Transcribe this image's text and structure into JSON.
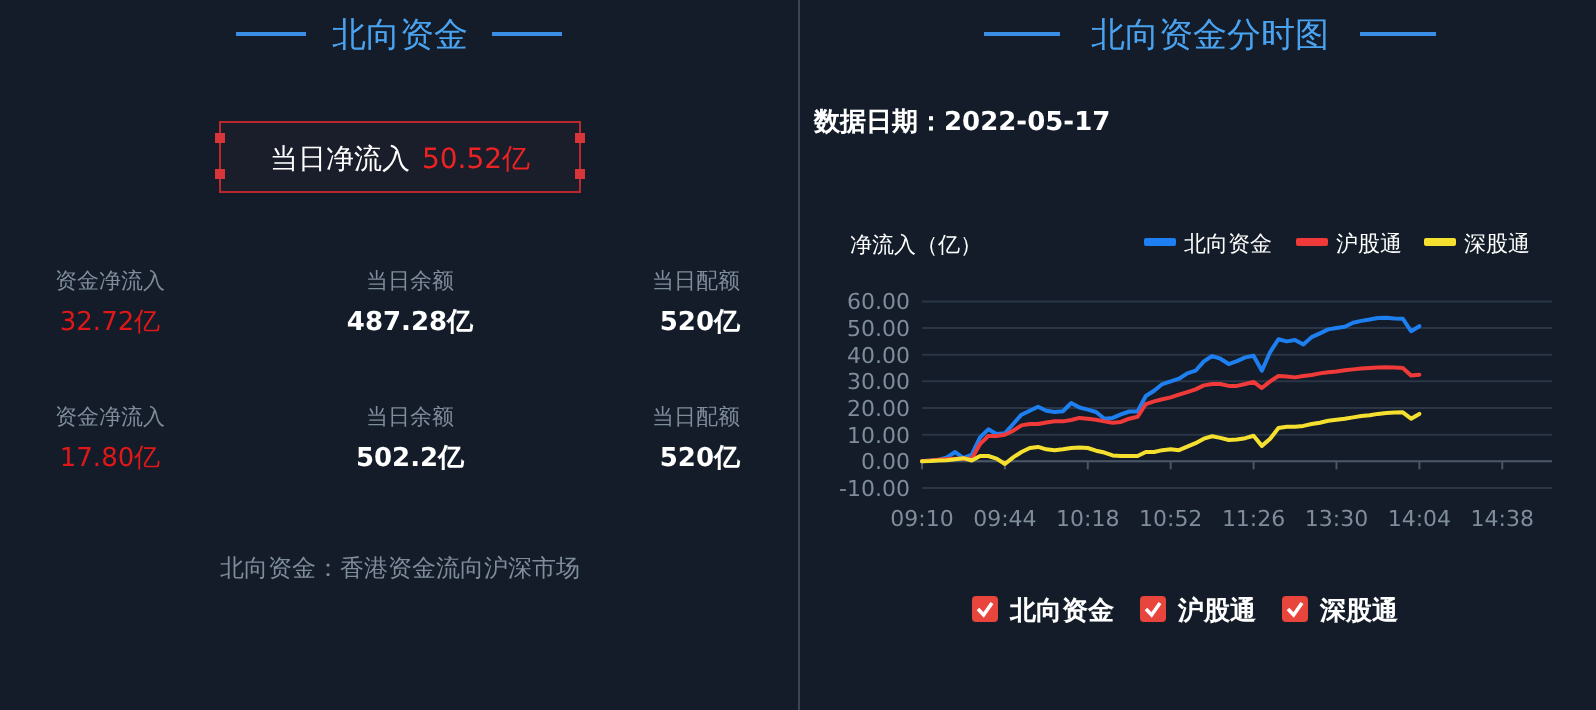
{
  "chart_data": [
    {
      "type": "other",
      "title": "北向资金",
      "annotations": [
        "当日净流入",
        "50.52亿",
        "资金净流入",
        "32.72亿",
        "当日余额",
        "487.28亿",
        "当日配额",
        "520亿",
        "资金净流入",
        "17.80亿",
        "当日余额",
        "502.2亿",
        "当日配额",
        "520亿",
        "北向资金：香港资金流向沪深市场"
      ]
    },
    {
      "type": "line",
      "title": "北向资金分时图",
      "subtitle": "数据日期：2022-05-17",
      "ylabel": "净流入（亿）",
      "legend": "top right",
      "grid": "y",
      "marker": "none",
      "line_style": "solid",
      "categories": [
        "09:10",
        null,
        null,
        null,
        null,
        null,
        null,
        null,
        null,
        null,
        "09:44",
        null,
        null,
        null,
        null,
        null,
        null,
        null,
        null,
        null,
        "10:18",
        null,
        null,
        null,
        null,
        null,
        null,
        null,
        null,
        null,
        "10:52",
        null,
        null,
        null,
        null,
        null,
        null,
        null,
        null,
        null,
        "11:26",
        null,
        null,
        null,
        null,
        null,
        null,
        null,
        null,
        null,
        "13:30",
        null,
        null,
        null,
        null,
        null,
        null,
        null,
        null,
        null,
        "14:04",
        null,
        null,
        null,
        null,
        null,
        null,
        null,
        null,
        null,
        "14:38",
        null,
        null,
        null,
        null,
        null,
        null
      ],
      "ylim": [
        -10,
        60
      ],
      "yticks": [
        {
          "value": -10,
          "label": "-10.00"
        },
        {
          "value": 0,
          "label": "0.00"
        },
        {
          "value": 10,
          "label": "10.00"
        },
        {
          "value": 20,
          "label": "20.00"
        },
        {
          "value": 30,
          "label": "30.00"
        },
        {
          "value": 40,
          "label": "40.00"
        },
        {
          "value": 50,
          "label": "50.00"
        },
        {
          "value": 60,
          "label": "60.00"
        }
      ],
      "series": [
        {
          "name": "北向资金",
          "color": "#1e7ff0",
          "values": [
            0,
            0.3,
            0.5,
            1.5,
            3.5,
            1.2,
            2.5,
            9,
            12,
            10.3,
            10.5,
            14,
            17.5,
            19,
            20.5,
            19,
            18.5,
            18.8,
            21.9,
            20.2,
            19.4,
            18.5,
            16,
            16.3,
            17.6,
            18.7,
            18.7,
            24.5,
            26.5,
            29,
            30,
            31,
            33,
            34,
            37.5,
            39.5,
            38.5,
            36.5,
            37.6,
            39,
            39.6,
            34,
            41,
            45.8,
            45,
            45.5,
            43.8,
            46.6,
            48,
            49.5,
            50,
            50.5,
            52,
            52.7,
            53.2,
            53.8,
            53.9,
            53.6,
            53.5,
            48.8,
            50.7,
            null,
            null,
            null,
            null,
            null,
            null,
            null,
            null,
            null,
            null,
            null,
            null,
            null,
            null,
            null,
            null
          ]
        },
        {
          "name": "沪股通",
          "color": "#f03a3a",
          "values": [
            0,
            0.3,
            0.6,
            0.9,
            1,
            1,
            1,
            6.5,
            9.5,
            9.5,
            10,
            11.5,
            13.5,
            14,
            14,
            14.6,
            15,
            15,
            15.5,
            16.3,
            16,
            15.6,
            15,
            14.5,
            14.8,
            16,
            16.7,
            21.5,
            22.5,
            23.3,
            24,
            25,
            26,
            27,
            28.5,
            29,
            29,
            28.3,
            28.3,
            29,
            29.8,
            27.5,
            30,
            32,
            31.8,
            31.5,
            32,
            32.4,
            33,
            33.4,
            33.7,
            34.2,
            34.5,
            34.8,
            35,
            35.2,
            35.3,
            35.2,
            35,
            32.2,
            32.5,
            null,
            null,
            null,
            null,
            null,
            null,
            null,
            null,
            null,
            null,
            null,
            null,
            null,
            null,
            null,
            null
          ]
        },
        {
          "name": "深股通",
          "color": "#f5e030",
          "values": [
            0,
            0.1,
            0.3,
            0.4,
            0.8,
            1.2,
            0.3,
            2,
            2,
            1,
            -1,
            1.5,
            3.5,
            5,
            5.4,
            4.5,
            4.2,
            4.5,
            5,
            5.2,
            5,
            4,
            3.3,
            2.2,
            2,
            2,
            2,
            3.5,
            3.5,
            4.2,
            4.5,
            4.2,
            5.5,
            6.8,
            8.5,
            9.4,
            8.8,
            8,
            8.2,
            8.7,
            9.6,
            5.8,
            8.5,
            12.5,
            13,
            13,
            13.3,
            14,
            14.5,
            15.2,
            15.6,
            16,
            16.5,
            17,
            17.3,
            17.8,
            18.1,
            18.3,
            18.4,
            16,
            17.8,
            null,
            null,
            null,
            null,
            null,
            null,
            null,
            null,
            null,
            null,
            null,
            null,
            null,
            null,
            null,
            null
          ]
        }
      ]
    }
  ]
}
